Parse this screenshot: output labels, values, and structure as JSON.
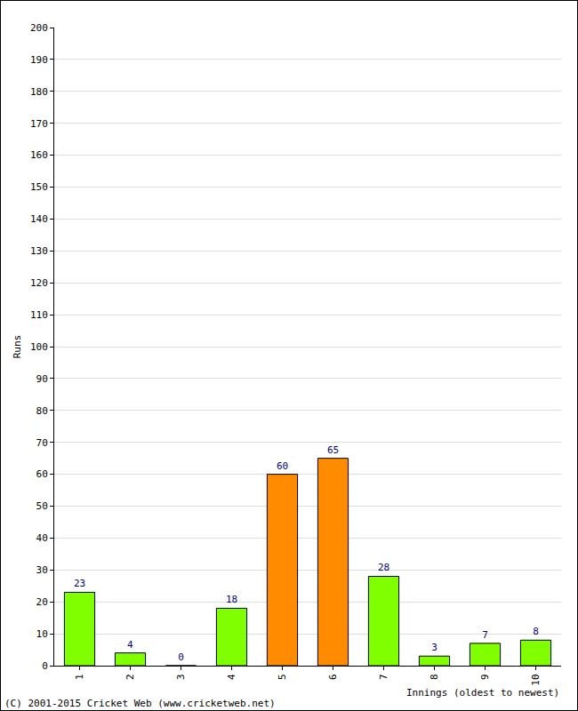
{
  "chart_data": {
    "type": "bar",
    "categories": [
      "1",
      "2",
      "3",
      "4",
      "5",
      "6",
      "7",
      "8",
      "9",
      "10"
    ],
    "values": [
      23,
      4,
      0,
      18,
      60,
      65,
      28,
      3,
      7,
      8
    ],
    "colors": [
      "#80ff00",
      "#80ff00",
      "#80ff00",
      "#80ff00",
      "#ff8c00",
      "#ff8c00",
      "#80ff00",
      "#80ff00",
      "#80ff00",
      "#80ff00"
    ],
    "x_label": "Innings (oldest to newest)",
    "y_label": "Runs",
    "annotations": [
      "(C) 2001-2015 Cricket Web (www.cricketweb.net)"
    ],
    "ylim": [
      0,
      200
    ],
    "yticks": [
      0,
      10,
      20,
      30,
      40,
      50,
      60,
      70,
      80,
      90,
      100,
      110,
      120,
      130,
      140,
      150,
      160,
      170,
      180,
      190,
      200
    ],
    "grid": true,
    "data_labels": true
  }
}
